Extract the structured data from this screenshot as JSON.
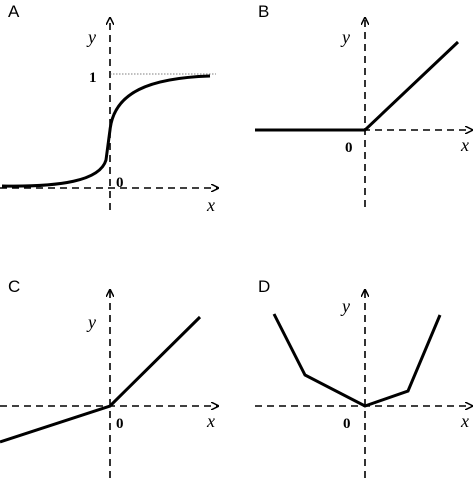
{
  "panels": [
    {
      "label": "A",
      "y_label": "y",
      "x_label": "x",
      "origin_label": "0",
      "level_label": "1"
    },
    {
      "label": "B",
      "y_label": "y",
      "x_label": "x",
      "origin_label": "0"
    },
    {
      "label": "C",
      "y_label": "y",
      "x_label": "x",
      "origin_label": "0"
    },
    {
      "label": "D",
      "y_label": "y",
      "x_label": "x",
      "origin_label": "0"
    }
  ]
}
